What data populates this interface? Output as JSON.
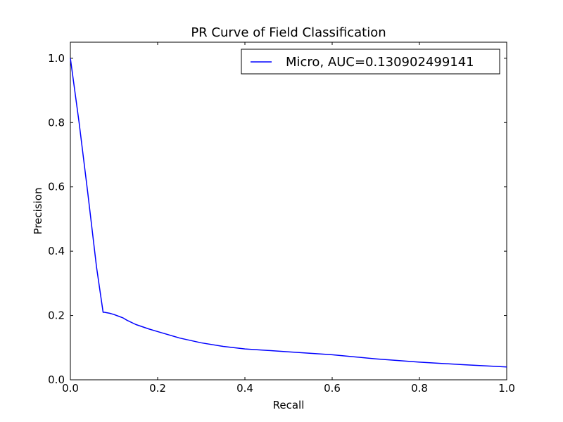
{
  "chart_data": {
    "type": "line",
    "title": "PR Curve of Field Classification",
    "xlabel": "Recall",
    "ylabel": "Precision",
    "xlim": [
      0.0,
      1.0
    ],
    "ylim": [
      0.0,
      1.05
    ],
    "xticks": [
      "0.0",
      "0.2",
      "0.4",
      "0.6",
      "0.8",
      "1.0"
    ],
    "yticks": [
      "0.0",
      "0.2",
      "0.4",
      "0.6",
      "0.8",
      "1.0"
    ],
    "grid": false,
    "legend_position": "top-right",
    "series": [
      {
        "name": "Micro, AUC=0.130902499141",
        "color": "#0000ff",
        "x": [
          0.0,
          0.02,
          0.04,
          0.06,
          0.075,
          0.078,
          0.09,
          0.1,
          0.11,
          0.12,
          0.13,
          0.15,
          0.18,
          0.2,
          0.25,
          0.3,
          0.35,
          0.4,
          0.5,
          0.6,
          0.7,
          0.8,
          0.9,
          1.0
        ],
        "y": [
          1.0,
          0.8,
          0.58,
          0.35,
          0.21,
          0.21,
          0.207,
          0.203,
          0.198,
          0.193,
          0.185,
          0.172,
          0.158,
          0.15,
          0.13,
          0.115,
          0.104,
          0.096,
          0.087,
          0.078,
          0.065,
          0.055,
          0.047,
          0.04
        ]
      }
    ]
  }
}
